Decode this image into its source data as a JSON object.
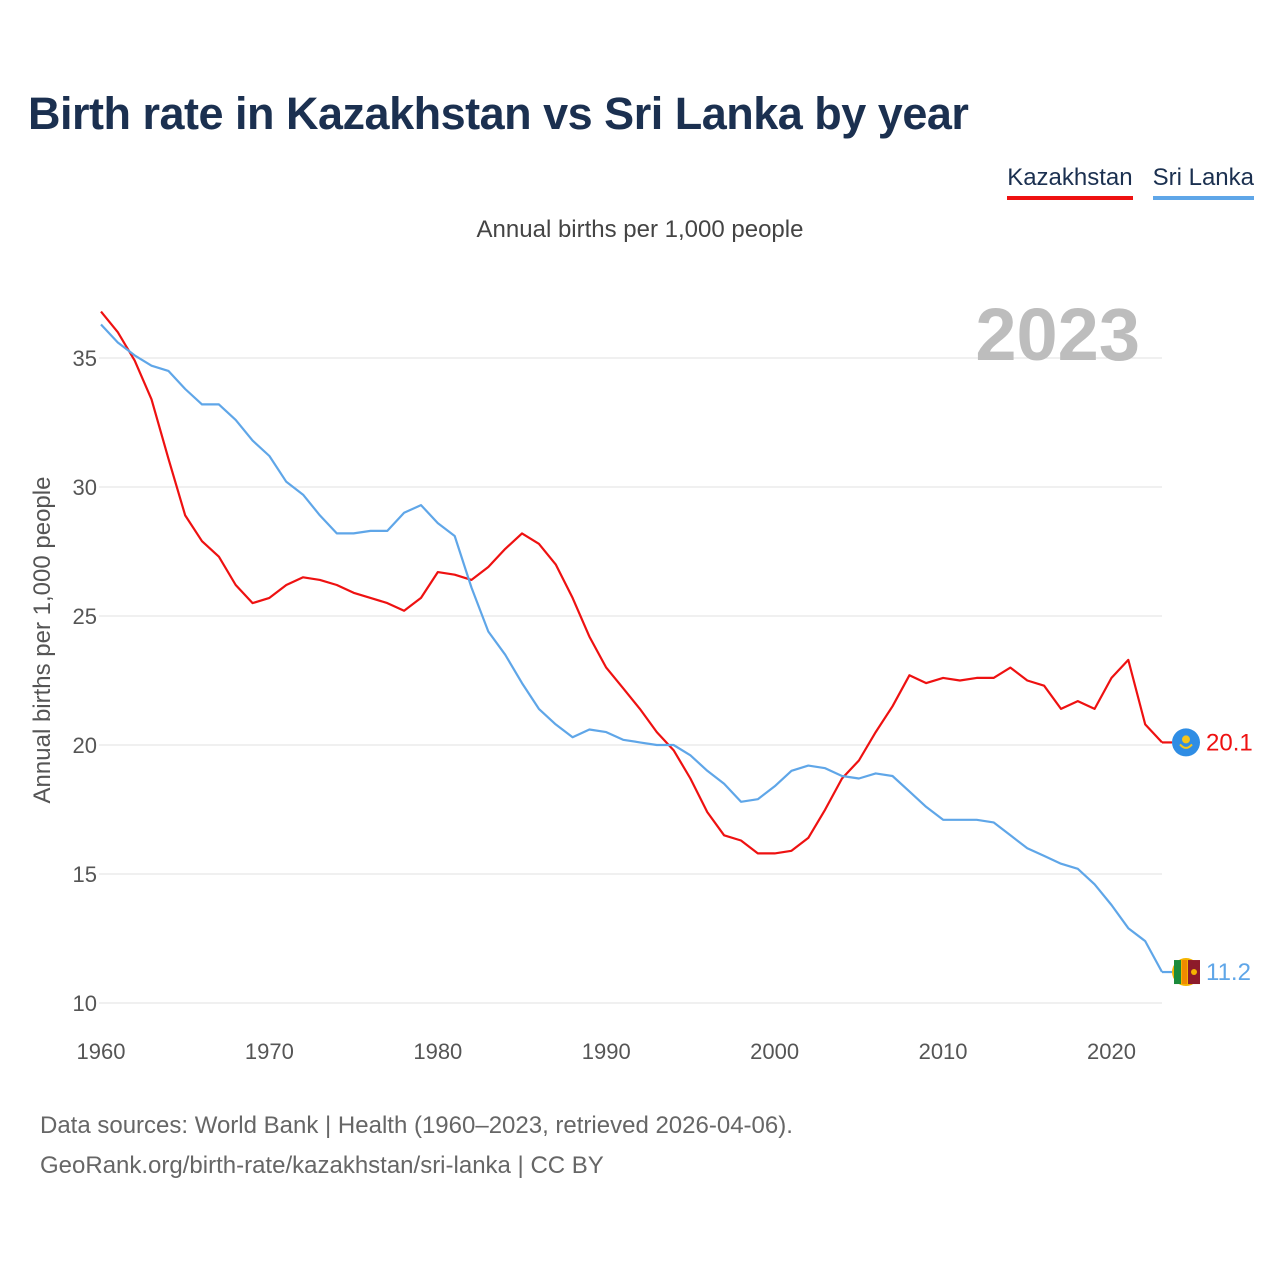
{
  "title": "Birth rate in Kazakhstan vs Sri Lanka by year",
  "subtitle": "Annual births per 1,000 people",
  "year_label": "2023",
  "legend": [
    {
      "name": "Kazakhstan",
      "color": "#ee1111"
    },
    {
      "name": "Sri Lanka",
      "color": "#5fa6e8"
    }
  ],
  "footer": {
    "line1": "Data sources: World Bank | Health (1960–2023, retrieved 2026-04-06).",
    "line2": "GeoRank.org/birth-rate/kazakhstan/sri-lanka | CC BY"
  },
  "chart_data": {
    "type": "line",
    "title": "Birth rate in Kazakhstan vs Sri Lanka by year",
    "ylabel": "Annual births per 1,000 people",
    "xlabel": "",
    "xlim": [
      1960,
      2023
    ],
    "ylim": [
      10,
      37
    ],
    "x_ticks": [
      1960,
      1970,
      1980,
      1990,
      2000,
      2010,
      2020
    ],
    "y_ticks": [
      10,
      15,
      20,
      25,
      30,
      35
    ],
    "grid": true,
    "x_start": 1960,
    "series": [
      {
        "name": "Kazakhstan",
        "color": "#ee1111",
        "end_label": "20.1",
        "flag": "kazakhstan-flag",
        "values": [
          36.8,
          36.0,
          34.9,
          33.4,
          31.1,
          28.9,
          27.9,
          27.3,
          26.2,
          25.5,
          25.7,
          26.2,
          26.5,
          26.4,
          26.2,
          25.9,
          25.7,
          25.5,
          25.2,
          25.7,
          26.7,
          26.6,
          26.4,
          26.9,
          27.6,
          28.2,
          27.8,
          27.0,
          25.7,
          24.2,
          23.0,
          22.2,
          21.4,
          20.5,
          19.8,
          18.7,
          17.4,
          16.5,
          16.3,
          15.8,
          15.8,
          15.9,
          16.4,
          17.5,
          18.7,
          19.4,
          20.5,
          21.5,
          22.7,
          22.4,
          22.6,
          22.5,
          22.6,
          22.6,
          23.0,
          22.5,
          22.3,
          21.4,
          21.7,
          21.4,
          22.6,
          23.3,
          20.8,
          20.1
        ]
      },
      {
        "name": "Sri Lanka",
        "color": "#5fa6e8",
        "end_label": "11.2",
        "flag": "sri-lanka-flag",
        "values": [
          36.3,
          35.6,
          35.1,
          34.7,
          34.5,
          33.8,
          33.2,
          33.2,
          32.6,
          31.8,
          31.2,
          30.2,
          29.7,
          28.9,
          28.2,
          28.2,
          28.3,
          28.3,
          29.0,
          29.3,
          28.6,
          28.1,
          26.1,
          24.4,
          23.5,
          22.4,
          21.4,
          20.8,
          20.3,
          20.6,
          20.5,
          20.2,
          20.1,
          20.0,
          20.0,
          19.6,
          19.0,
          18.5,
          17.8,
          17.9,
          18.4,
          19.0,
          19.2,
          19.1,
          18.8,
          18.7,
          18.9,
          18.8,
          18.2,
          17.6,
          17.1,
          17.1,
          17.1,
          17.0,
          16.5,
          16.0,
          15.7,
          15.4,
          15.2,
          14.6,
          13.8,
          12.9,
          12.4,
          11.2
        ]
      }
    ]
  }
}
